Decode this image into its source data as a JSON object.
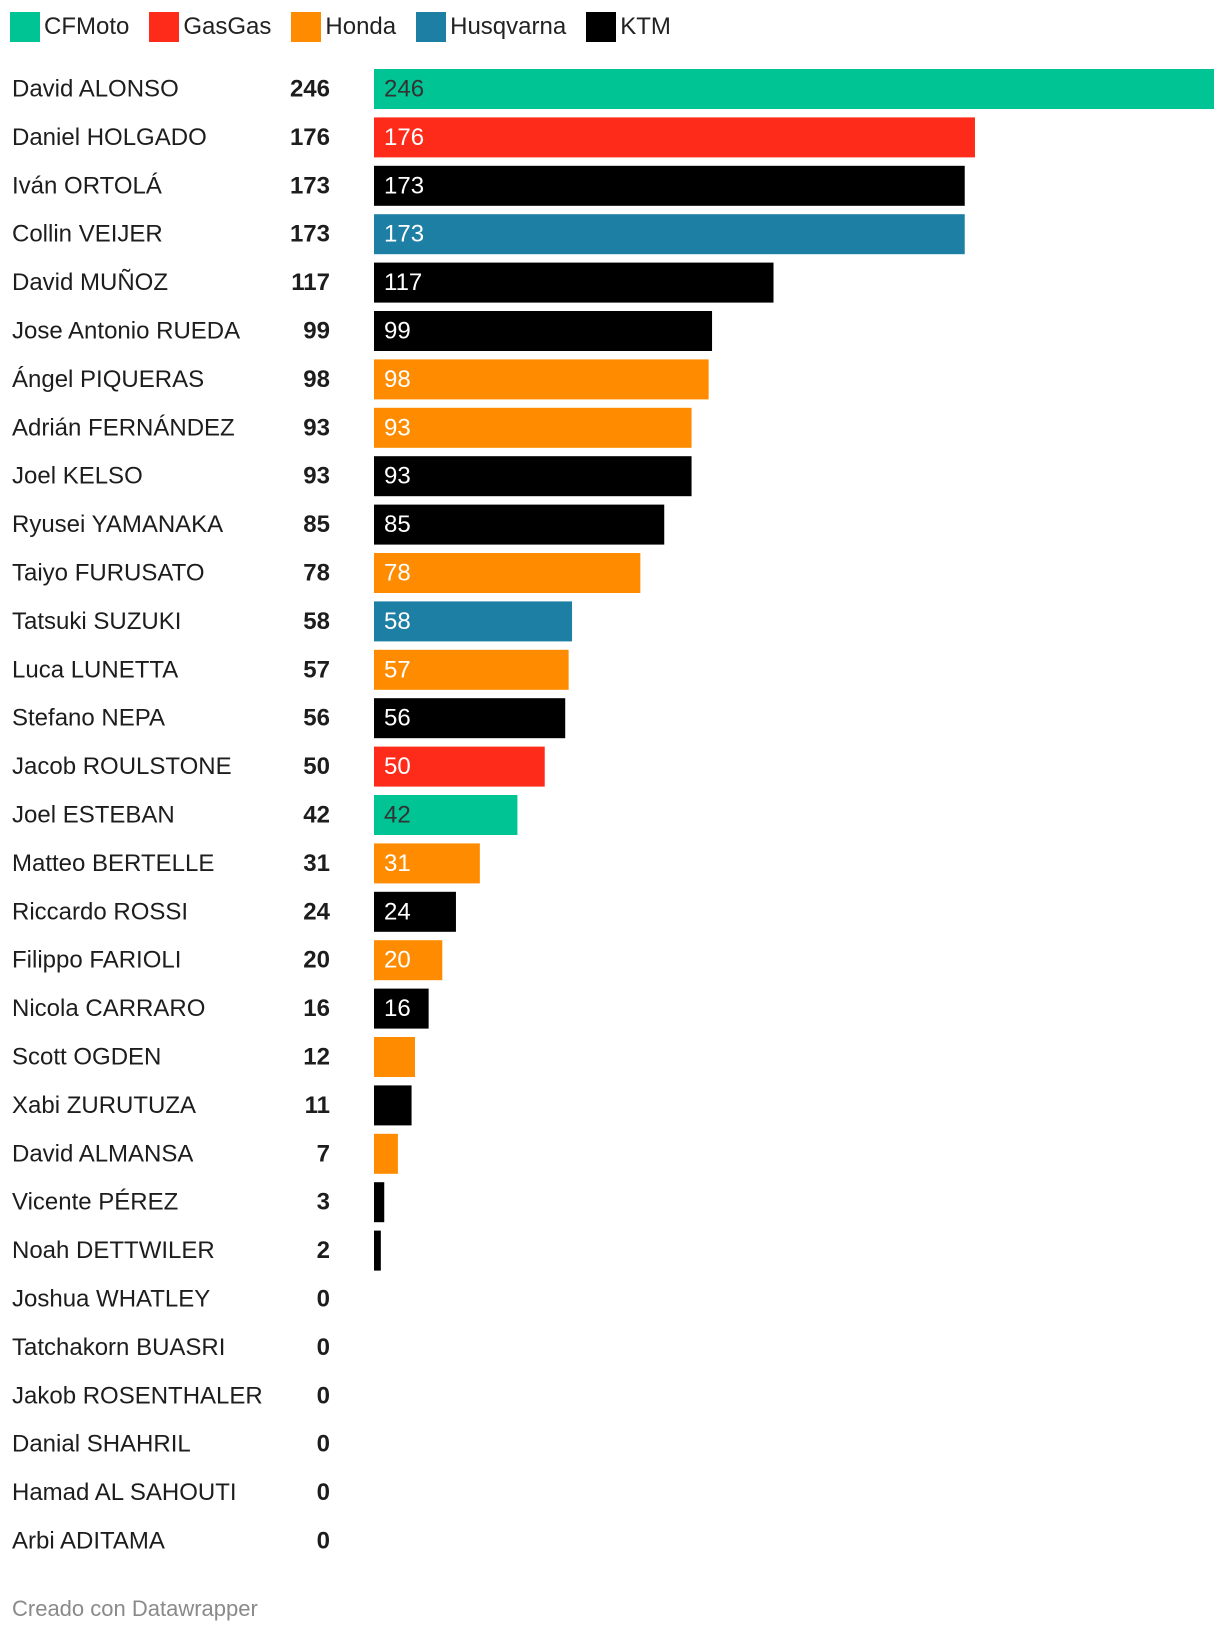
{
  "legend": [
    {
      "name": "CFMoto",
      "color": "#00c493"
    },
    {
      "name": "GasGas",
      "color": "#ff2b1a"
    },
    {
      "name": "Honda",
      "color": "#ff8c00"
    },
    {
      "name": "Husqvarna",
      "color": "#1e7fa5"
    },
    {
      "name": "KTM",
      "color": "#000000"
    }
  ],
  "chart_data": {
    "type": "bar",
    "orientation": "horizontal",
    "xlim": [
      0,
      246
    ],
    "grid": false,
    "legend_position": "top-left",
    "rows": [
      {
        "name": "David ALONSO",
        "value": 246,
        "brand": "CFMoto",
        "bar_label": "246"
      },
      {
        "name": "Daniel HOLGADO",
        "value": 176,
        "brand": "GasGas",
        "bar_label": "176"
      },
      {
        "name": "Iván ORTOLÁ",
        "value": 173,
        "brand": "KTM",
        "bar_label": "173"
      },
      {
        "name": "Collin VEIJER",
        "value": 173,
        "brand": "Husqvarna",
        "bar_label": "173"
      },
      {
        "name": "David MUÑOZ",
        "value": 117,
        "brand": "KTM",
        "bar_label": "117"
      },
      {
        "name": "Jose Antonio RUEDA",
        "value": 99,
        "brand": "KTM",
        "bar_label": "99"
      },
      {
        "name": "Ángel PIQUERAS",
        "value": 98,
        "brand": "Honda",
        "bar_label": "98"
      },
      {
        "name": "Adrián FERNÁNDEZ",
        "value": 93,
        "brand": "Honda",
        "bar_label": "93"
      },
      {
        "name": "Joel KELSO",
        "value": 93,
        "brand": "KTM",
        "bar_label": "93"
      },
      {
        "name": "Ryusei YAMANAKA",
        "value": 85,
        "brand": "KTM",
        "bar_label": "85"
      },
      {
        "name": "Taiyo FURUSATO",
        "value": 78,
        "brand": "Honda",
        "bar_label": "78"
      },
      {
        "name": "Tatsuki SUZUKI",
        "value": 58,
        "brand": "Husqvarna",
        "bar_label": "58"
      },
      {
        "name": "Luca LUNETTA",
        "value": 57,
        "brand": "Honda",
        "bar_label": "57"
      },
      {
        "name": "Stefano NEPA",
        "value": 56,
        "brand": "KTM",
        "bar_label": "56"
      },
      {
        "name": "Jacob ROULSTONE",
        "value": 50,
        "brand": "GasGas",
        "bar_label": "50"
      },
      {
        "name": "Joel ESTEBAN",
        "value": 42,
        "brand": "CFMoto",
        "bar_label": "42"
      },
      {
        "name": "Matteo BERTELLE",
        "value": 31,
        "brand": "Honda",
        "bar_label": "31"
      },
      {
        "name": "Riccardo ROSSI",
        "value": 24,
        "brand": "KTM",
        "bar_label": "24"
      },
      {
        "name": "Filippo FARIOLI",
        "value": 20,
        "brand": "Honda",
        "bar_label": "20"
      },
      {
        "name": "Nicola CARRARO",
        "value": 16,
        "brand": "KTM",
        "bar_label": "16"
      },
      {
        "name": "Scott OGDEN",
        "value": 12,
        "brand": "Honda",
        "bar_label": ""
      },
      {
        "name": "Xabi ZURUTUZA",
        "value": 11,
        "brand": "KTM",
        "bar_label": ""
      },
      {
        "name": "David ALMANSA",
        "value": 7,
        "brand": "Honda",
        "bar_label": ""
      },
      {
        "name": "Vicente PÉREZ",
        "value": 3,
        "brand": "KTM",
        "bar_label": ""
      },
      {
        "name": "Noah DETTWILER",
        "value": 2,
        "brand": "KTM",
        "bar_label": ""
      },
      {
        "name": "Joshua WHATLEY",
        "value": 0,
        "brand": "",
        "bar_label": ""
      },
      {
        "name": "Tatchakorn BUASRI",
        "value": 0,
        "brand": "",
        "bar_label": ""
      },
      {
        "name": "Jakob ROSENTHALER",
        "value": 0,
        "brand": "",
        "bar_label": ""
      },
      {
        "name": "Danial SHAHRIL",
        "value": 0,
        "brand": "",
        "bar_label": ""
      },
      {
        "name": "Hamad AL SAHOUTI",
        "value": 0,
        "brand": "",
        "bar_label": ""
      },
      {
        "name": "Arbi ADITAMA",
        "value": 0,
        "brand": "",
        "bar_label": ""
      }
    ]
  },
  "footer": {
    "credit": "Creado con Datawrapper"
  }
}
